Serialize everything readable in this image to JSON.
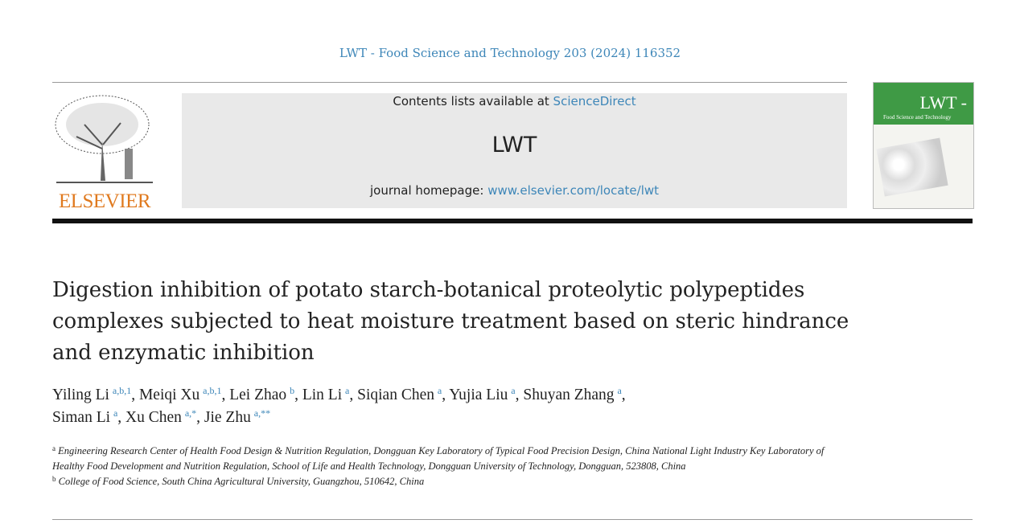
{
  "journal_ref": "LWT - Food Science and Technology 203 (2024) 116352",
  "header": {
    "publisher_logo": "ELSEVIER",
    "contents_prefix": "Contents lists available at ",
    "contents_link": "ScienceDirect",
    "journal_name": "LWT",
    "homepage_prefix": "journal homepage: ",
    "homepage_link": "www.elsevier.com/locate/lwt",
    "cover_title": "LWT -",
    "cover_subtitle": "Food Science and Technology"
  },
  "title": "Digestion inhibition of potato starch-botanical proteolytic polypeptides complexes subjected to heat moisture treatment based on steric hindrance and enzymatic inhibition",
  "authors": [
    {
      "name": "Yiling Li",
      "sup": "a,b,1"
    },
    {
      "name": "Meiqi Xu",
      "sup": "a,b,1"
    },
    {
      "name": "Lei Zhao",
      "sup": "b"
    },
    {
      "name": "Lin Li",
      "sup": "a"
    },
    {
      "name": "Siqian Chen",
      "sup": "a"
    },
    {
      "name": "Yujia Liu",
      "sup": "a"
    },
    {
      "name": "Shuyan Zhang",
      "sup": "a"
    },
    {
      "name": "Siman Li",
      "sup": "a"
    },
    {
      "name": "Xu Chen",
      "sup": "a,*"
    },
    {
      "name": "Jie Zhu",
      "sup": "a,**"
    }
  ],
  "affiliations": [
    {
      "label": "a",
      "text": "Engineering Research Center of Health Food Design & Nutrition Regulation, Dongguan Key Laboratory of Typical Food Precision Design, China National Light Industry Key Laboratory of Healthy Food Development and Nutrition Regulation, School of Life and Health Technology, Dongguan University of Technology, Dongguan, 523808, China"
    },
    {
      "label": "b",
      "text": "College of Food Science, South China Agricultural University, Guangzhou, 510642, China"
    }
  ],
  "colors": {
    "link": "#3d86b8",
    "elsevier_orange": "#e07a1f",
    "cover_green": "#3f9a45"
  }
}
